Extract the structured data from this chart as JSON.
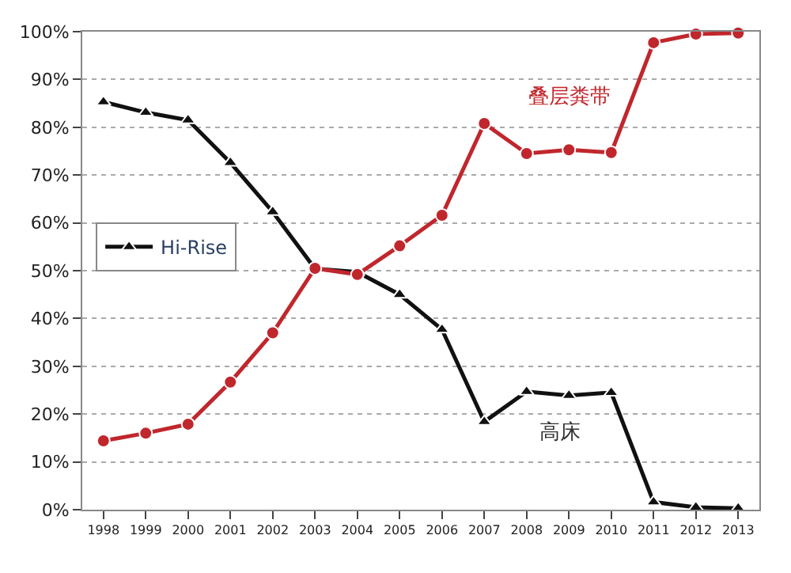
{
  "chart_data": {
    "type": "line",
    "x": [
      1998,
      1999,
      2000,
      2001,
      2002,
      2003,
      2004,
      2005,
      2006,
      2007,
      2008,
      2009,
      2010,
      2011,
      2012,
      2013
    ],
    "series": [
      {
        "name": "Hi-Rise",
        "color": "#111111",
        "marker": "triangle",
        "values": [
          85.3,
          83.1,
          81.5,
          72.6,
          62.3,
          50.4,
          49.7,
          45,
          37.7,
          18.4,
          24.7,
          23.9,
          24.5,
          1.6,
          0.5,
          0.3
        ]
      },
      {
        "name": "叠层粪带",
        "color": "#c0272d",
        "marker": "circle",
        "values": [
          14.4,
          16.0,
          17.9,
          26.7,
          37.0,
          50.5,
          49.2,
          55.2,
          61.6,
          80.8,
          74.5,
          75.3,
          74.7,
          97.7,
          99.5,
          99.7
        ]
      }
    ],
    "annotations": [
      "高床"
    ],
    "xlim": [
      1997.5,
      2013.5
    ],
    "xticks": [
      1998,
      1999,
      2000,
      2001,
      2002,
      2003,
      2004,
      2005,
      2006,
      2007,
      2008,
      2009,
      2010,
      2011,
      2012,
      2013
    ],
    "ylim": [
      0,
      100
    ],
    "yticks": [
      {
        "value": 0,
        "label": "0%"
      },
      {
        "value": 10,
        "label": "10%"
      },
      {
        "value": 20,
        "label": "20%"
      },
      {
        "value": 30,
        "label": "30%"
      },
      {
        "value": 40,
        "label": "40%"
      },
      {
        "value": 50,
        "label": "50%"
      },
      {
        "value": 60,
        "label": "60%"
      },
      {
        "value": 70,
        "label": "70%"
      },
      {
        "value": 80,
        "label": "80%"
      },
      {
        "value": 90,
        "label": "90%"
      },
      {
        "value": 100,
        "label": "100%"
      }
    ],
    "grid": "y",
    "legend": "left",
    "line_style": "solid"
  }
}
